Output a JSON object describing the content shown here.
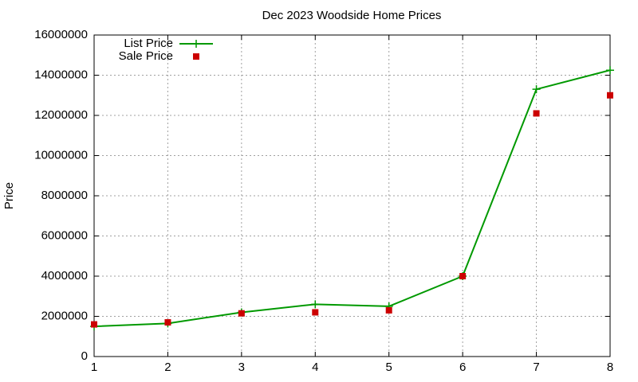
{
  "chart_data": {
    "type": "line",
    "title": "Dec 2023 Woodside Home Prices",
    "y_label": "Price",
    "x": [
      1,
      2,
      3,
      4,
      5,
      6,
      7,
      8
    ],
    "series": [
      {
        "name": "List Price",
        "color": "#009900",
        "line": true,
        "marker": "plus",
        "values": [
          1500000,
          1650000,
          2200000,
          2600000,
          2500000,
          4000000,
          13300000,
          14250000
        ]
      },
      {
        "name": "Sale Price",
        "color": "#cc0000",
        "line": false,
        "marker": "square",
        "values": [
          1600000,
          1700000,
          2150000,
          2200000,
          2300000,
          4000000,
          12100000,
          13000000
        ]
      }
    ],
    "xlim": [
      1,
      8
    ],
    "xticks": [
      1,
      2,
      3,
      4,
      5,
      6,
      7,
      8
    ],
    "ylim": [
      0,
      16000000
    ],
    "yticks": [
      0,
      2000000,
      4000000,
      6000000,
      8000000,
      10000000,
      12000000,
      14000000,
      16000000
    ],
    "grid": true,
    "legend": "top-left"
  }
}
